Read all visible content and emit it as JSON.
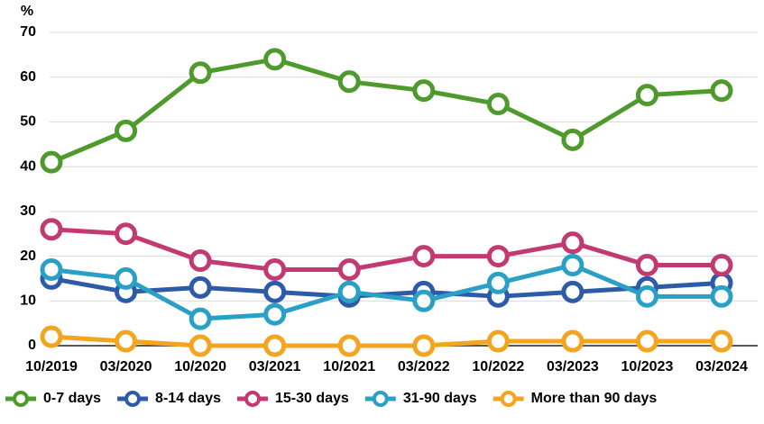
{
  "chart_data": {
    "type": "line",
    "y_label": "%",
    "categories": [
      "10/2019",
      "03/2020",
      "10/2020",
      "03/2021",
      "10/2021",
      "03/2022",
      "10/2022",
      "03/2023",
      "10/2023",
      "03/2024"
    ],
    "series": [
      {
        "name": "0-7 days",
        "color": "#4f9a2c",
        "values": [
          41,
          48,
          61,
          64,
          59,
          57,
          54,
          46,
          56,
          57
        ]
      },
      {
        "name": "8-14 days",
        "color": "#2e5ba8",
        "values": [
          15,
          12,
          13,
          12,
          11,
          12,
          11,
          12,
          13,
          14
        ]
      },
      {
        "name": "15-30 days",
        "color": "#c13a72",
        "values": [
          26,
          25,
          19,
          17,
          17,
          20,
          20,
          23,
          18,
          18
        ]
      },
      {
        "name": "31-90 days",
        "color": "#2ba0c6",
        "values": [
          17,
          15,
          6,
          7,
          12,
          10,
          14,
          18,
          11,
          11
        ]
      },
      {
        "name": "More than 90 days",
        "color": "#f3a51f",
        "values": [
          2,
          1,
          0,
          0,
          0,
          0,
          1,
          1,
          1,
          1
        ]
      }
    ],
    "ylim": [
      0,
      70
    ],
    "yticks": [
      0,
      10,
      20,
      30,
      40,
      50,
      60,
      70
    ],
    "grid": true
  }
}
